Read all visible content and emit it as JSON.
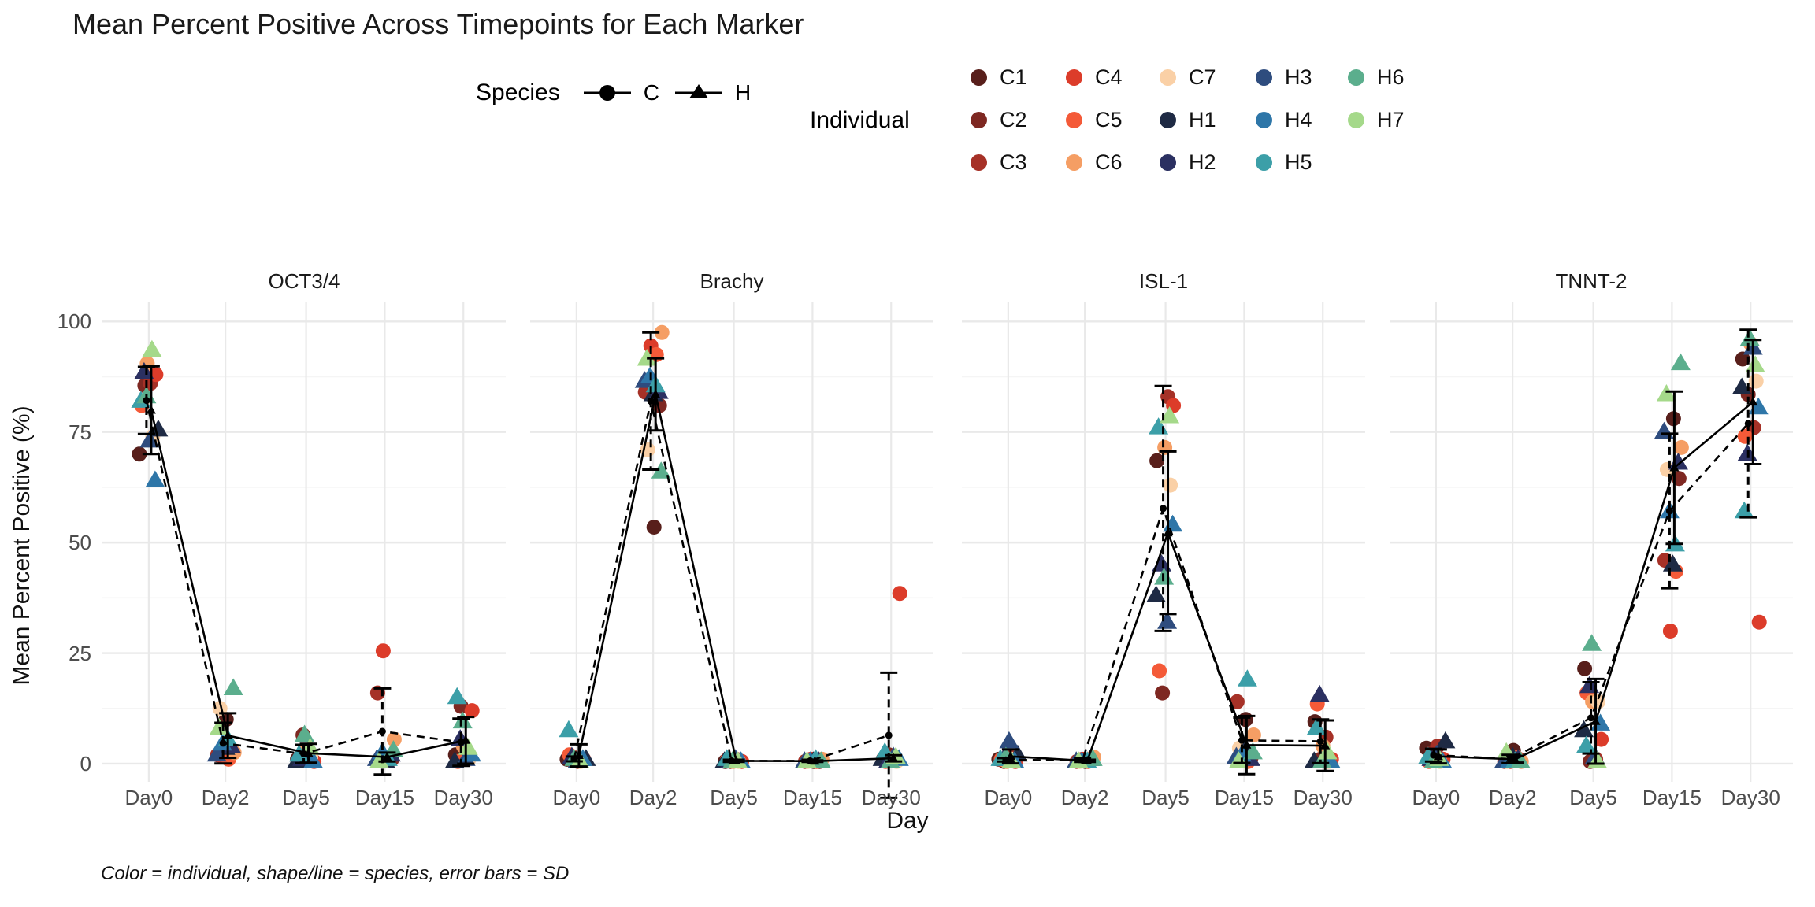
{
  "title": "Mean Percent Positive Across Timepoints for Each Marker",
  "caption": "Color = individual, shape/line = species, error bars = SD",
  "xlabel": "Day",
  "ylabel": "Mean Percent Positive (%)",
  "legend_species": {
    "label": "Species",
    "items": [
      {
        "id": "C",
        "label": "C",
        "marker": "circle",
        "linetype": "dashed"
      },
      {
        "id": "H",
        "label": "H",
        "marker": "triangle",
        "linetype": "solid"
      }
    ]
  },
  "legend_individual": {
    "label": "Individual"
  },
  "chart_data": {
    "type": "scatter",
    "title": "Mean Percent Positive Across Timepoints for Each Marker",
    "xlabel": "Day",
    "ylabel": "Mean Percent Positive (%)",
    "facets": [
      "OCT3/4",
      "Brachy",
      "ISL-1",
      "TNNT-2"
    ],
    "x_categories": [
      "Day0",
      "Day2",
      "Day5",
      "Day15",
      "Day30"
    ],
    "yticks": [
      0,
      25,
      50,
      75,
      100
    ],
    "ylim": [
      -4.1,
      104.5
    ],
    "grid": true,
    "legend_position": "top",
    "stat_note": "black lines join species means; error bars are mean ± SD; dashed = C, solid = H",
    "individuals": [
      {
        "id": "C1",
        "species": "C",
        "color": "#581F1B"
      },
      {
        "id": "C2",
        "species": "C",
        "color": "#7E2822"
      },
      {
        "id": "C3",
        "species": "C",
        "color": "#A63127"
      },
      {
        "id": "C4",
        "species": "C",
        "color": "#DC3C2A"
      },
      {
        "id": "C5",
        "species": "C",
        "color": "#F45A38"
      },
      {
        "id": "C6",
        "species": "C",
        "color": "#F59E64"
      },
      {
        "id": "C7",
        "species": "C",
        "color": "#FAD0A6"
      },
      {
        "id": "H1",
        "species": "H",
        "color": "#1E2A44"
      },
      {
        "id": "H2",
        "species": "H",
        "color": "#2B3061"
      },
      {
        "id": "H3",
        "species": "H",
        "color": "#2E4C7E"
      },
      {
        "id": "H4",
        "species": "H",
        "color": "#2E76A8"
      },
      {
        "id": "H5",
        "species": "H",
        "color": "#3C9FA8"
      },
      {
        "id": "H6",
        "species": "H",
        "color": "#5BAE8D"
      },
      {
        "id": "H7",
        "species": "H",
        "color": "#A5D98A"
      }
    ],
    "values": {
      "OCT3/4": {
        "C1": [
          70,
          10,
          1,
          1,
          2
        ],
        "C2": [
          85.5,
          3,
          6.5,
          1,
          13
        ],
        "C3": [
          86,
          2,
          2,
          16,
          1.5
        ],
        "C4": [
          88,
          1.5,
          0.5,
          25.5,
          12
        ],
        "C5": [
          81,
          1,
          1,
          1,
          0.5
        ],
        "C6": [
          90.5,
          2.5,
          3,
          5.5,
          4
        ],
        "C7": [
          74,
          12.5,
          1.5,
          1,
          1
        ],
        "H1": [
          75.5,
          3.5,
          0.5,
          0.5,
          0.5
        ],
        "H2": [
          88.5,
          4,
          1,
          2,
          5.5
        ],
        "H3": [
          73,
          2,
          2.5,
          1,
          1
        ],
        "H4": [
          64,
          4.5,
          0.5,
          2.5,
          2
        ],
        "H5": [
          82,
          5.5,
          2,
          1,
          15
        ],
        "H6": [
          83,
          17,
          6.5,
          3,
          9.5
        ],
        "H7": [
          93.5,
          8,
          3.5,
          0.5,
          3.5
        ]
      },
      "Brachy": {
        "C1": [
          1,
          53.5,
          0.5,
          0.5,
          1
        ],
        "C2": [
          1.5,
          81,
          0.5,
          0.5,
          2
        ],
        "C3": [
          0.5,
          84,
          1,
          0.5,
          1.5
        ],
        "C4": [
          1,
          94.5,
          0.5,
          1,
          38.5
        ],
        "C5": [
          2,
          92.5,
          1,
          0.5,
          0.5
        ],
        "C6": [
          1,
          97.5,
          0.5,
          1,
          1
        ],
        "C7": [
          0.5,
          71,
          0.5,
          0.5,
          0.5
        ],
        "H1": [
          1,
          83.5,
          0.5,
          0.5,
          1
        ],
        "H2": [
          1.5,
          84,
          0.5,
          0.5,
          0.5
        ],
        "H3": [
          0.5,
          86.5,
          1,
          0.5,
          1.5
        ],
        "H4": [
          1,
          87.5,
          0.5,
          0.5,
          1
        ],
        "H5": [
          7.5,
          85.5,
          1,
          1,
          2.5
        ],
        "H6": [
          1,
          66,
          0.5,
          0.5,
          0.5
        ],
        "H7": [
          0.5,
          91.5,
          0.5,
          0.5,
          1.5
        ]
      },
      "ISL-1": {
        "C1": [
          1,
          0.5,
          68.5,
          10,
          9.5
        ],
        "C2": [
          0.5,
          1,
          16,
          1.5,
          1
        ],
        "C3": [
          1.5,
          0.5,
          83,
          14,
          6
        ],
        "C4": [
          0.5,
          1,
          81,
          1,
          1
        ],
        "C5": [
          1,
          0.5,
          21,
          0.5,
          13.5
        ],
        "C6": [
          0.5,
          1.5,
          71.5,
          6.5,
          4
        ],
        "C7": [
          1,
          0.5,
          63,
          3.5,
          0.5
        ],
        "H1": [
          2,
          0.5,
          38,
          3,
          0.5
        ],
        "H2": [
          1,
          1,
          45,
          1,
          15.5
        ],
        "H3": [
          5,
          0.5,
          32,
          1.5,
          1
        ],
        "H4": [
          0.5,
          0.5,
          54,
          2,
          0.5
        ],
        "H5": [
          1,
          0.5,
          76,
          19,
          8
        ],
        "H6": [
          1.5,
          1,
          42,
          2.5,
          0.5
        ],
        "H7": [
          0.5,
          0.5,
          78.5,
          0.5,
          2.5
        ]
      },
      "TNNT-2": {
        "C1": [
          3.5,
          3,
          21.5,
          78,
          91.5
        ],
        "C2": [
          2.5,
          1,
          0.5,
          64.5,
          83.5
        ],
        "C3": [
          4,
          0.5,
          1,
          46,
          76
        ],
        "C4": [
          1,
          0.5,
          5.5,
          30,
          32
        ],
        "C5": [
          0.5,
          1.5,
          16,
          43.5,
          74
        ],
        "C6": [
          1.5,
          0.5,
          14,
          71.5,
          95
        ],
        "C7": [
          0.5,
          0.5,
          14,
          66.5,
          86.5
        ],
        "H1": [
          5,
          1.5,
          7.5,
          45,
          85
        ],
        "H2": [
          1,
          1,
          17.5,
          68,
          70
        ],
        "H3": [
          2,
          0.5,
          1.5,
          75,
          94
        ],
        "H4": [
          0.5,
          0.5,
          9,
          57,
          80.5
        ],
        "H5": [
          1.5,
          0.5,
          4,
          49.5,
          57
        ],
        "H6": [
          0.5,
          0.5,
          27,
          90.5,
          96
        ],
        "H7": [
          1,
          2.5,
          0.5,
          83.5,
          90
        ]
      }
    }
  }
}
